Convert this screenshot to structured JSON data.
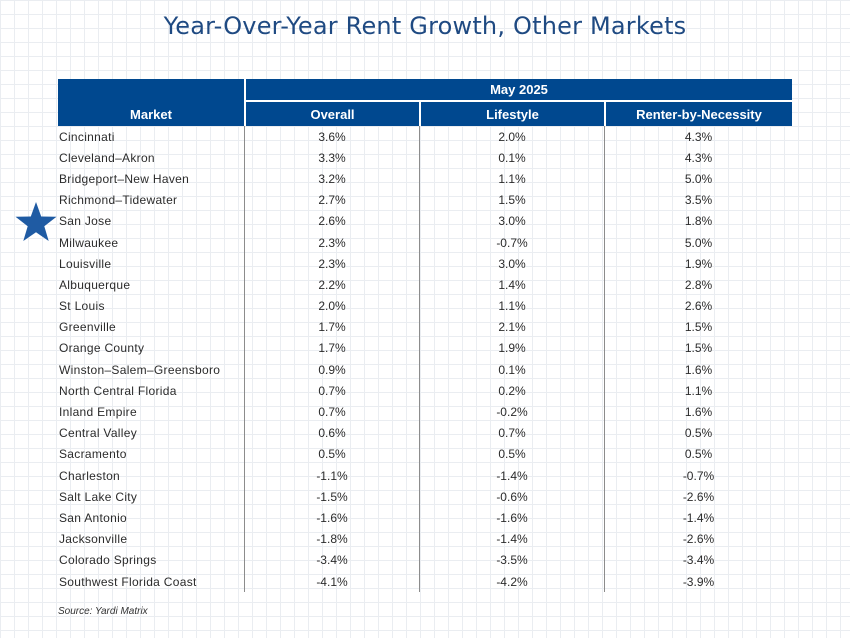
{
  "title": "Year-Over-Year Rent Growth, Other Markets",
  "source": "Source: Yardi Matrix",
  "highlight_icon": "star-icon",
  "colors": {
    "header_bg": "#00488f",
    "title": "#1f4a82",
    "star": "#1f5ba3"
  },
  "chart_data": {
    "type": "table",
    "title": "Year-Over-Year Rent Growth, Other Markets",
    "period_header": "May 2025",
    "columns": [
      "Market",
      "Overall",
      "Lifestyle",
      "Renter-by-Necessity"
    ],
    "highlighted_row": "San Jose",
    "rows": [
      [
        "Cincinnati",
        "3.6%",
        "2.0%",
        "4.3%"
      ],
      [
        "Cleveland–Akron",
        "3.3%",
        "0.1%",
        "4.3%"
      ],
      [
        "Bridgeport–New Haven",
        "3.2%",
        "1.1%",
        "5.0%"
      ],
      [
        "Richmond–Tidewater",
        "2.7%",
        "1.5%",
        "3.5%"
      ],
      [
        "San Jose",
        "2.6%",
        "3.0%",
        "1.8%"
      ],
      [
        "Milwaukee",
        "2.3%",
        "-0.7%",
        "5.0%"
      ],
      [
        "Louisville",
        "2.3%",
        "3.0%",
        "1.9%"
      ],
      [
        "Albuquerque",
        "2.2%",
        "1.4%",
        "2.8%"
      ],
      [
        "St Louis",
        "2.0%",
        "1.1%",
        "2.6%"
      ],
      [
        "Greenville",
        "1.7%",
        "2.1%",
        "1.5%"
      ],
      [
        "Orange County",
        "1.7%",
        "1.9%",
        "1.5%"
      ],
      [
        "Winston–Salem–Greensboro",
        "0.9%",
        "0.1%",
        "1.6%"
      ],
      [
        "North Central Florida",
        "0.7%",
        "0.2%",
        "1.1%"
      ],
      [
        "Inland Empire",
        "0.7%",
        "-0.2%",
        "1.6%"
      ],
      [
        "Central Valley",
        "0.6%",
        "0.7%",
        "0.5%"
      ],
      [
        "Sacramento",
        "0.5%",
        "0.5%",
        "0.5%"
      ],
      [
        "Charleston",
        "-1.1%",
        "-1.4%",
        "-0.7%"
      ],
      [
        "Salt Lake City",
        "-1.5%",
        "-0.6%",
        "-2.6%"
      ],
      [
        "San Antonio",
        "-1.6%",
        "-1.6%",
        "-1.4%"
      ],
      [
        "Jacksonville",
        "-1.8%",
        "-1.4%",
        "-2.6%"
      ],
      [
        "Colorado Springs",
        "-3.4%",
        "-3.5%",
        "-3.4%"
      ],
      [
        "Southwest Florida Coast",
        "-4.1%",
        "-4.2%",
        "-3.9%"
      ]
    ]
  }
}
